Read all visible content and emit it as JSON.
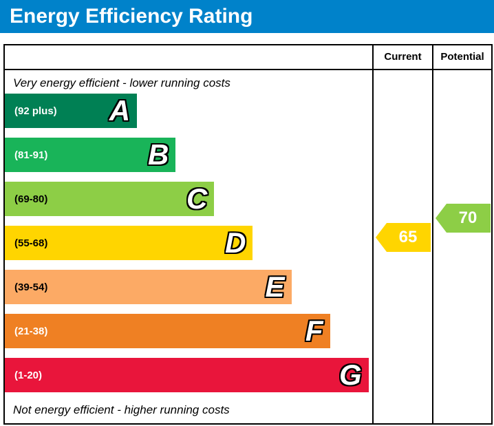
{
  "title": "Energy Efficiency Rating",
  "header": {
    "current": "Current",
    "potential": "Potential"
  },
  "notes": {
    "top": "Very energy efficient - lower running costs",
    "bottom": "Not energy efficient - higher running costs"
  },
  "colors": {
    "title_bar": "#0082ca"
  },
  "chart_data": {
    "type": "bar",
    "title": "Energy Efficiency Rating",
    "bands": [
      {
        "letter": "A",
        "range": "(92 plus)",
        "color": "#008054",
        "label_color": "#ffffff",
        "width_pct": 36
      },
      {
        "letter": "B",
        "range": "(81-91)",
        "color": "#19b459",
        "label_color": "#ffffff",
        "width_pct": 46.5
      },
      {
        "letter": "C",
        "range": "(69-80)",
        "color": "#8dce46",
        "label_color": "#000000",
        "width_pct": 57
      },
      {
        "letter": "D",
        "range": "(55-68)",
        "color": "#ffd500",
        "label_color": "#000000",
        "width_pct": 67.5
      },
      {
        "letter": "E",
        "range": "(39-54)",
        "color": "#fcaa65",
        "label_color": "#000000",
        "width_pct": 78
      },
      {
        "letter": "F",
        "range": "(21-38)",
        "color": "#ef8023",
        "label_color": "#ffffff",
        "width_pct": 88.5
      },
      {
        "letter": "G",
        "range": "(1-20)",
        "color": "#e9153b",
        "label_color": "#ffffff",
        "width_pct": 99
      }
    ],
    "current": {
      "value": 65,
      "color": "#ffd500",
      "band": "D"
    },
    "potential": {
      "value": 70,
      "color": "#8dce46",
      "band": "C"
    }
  }
}
